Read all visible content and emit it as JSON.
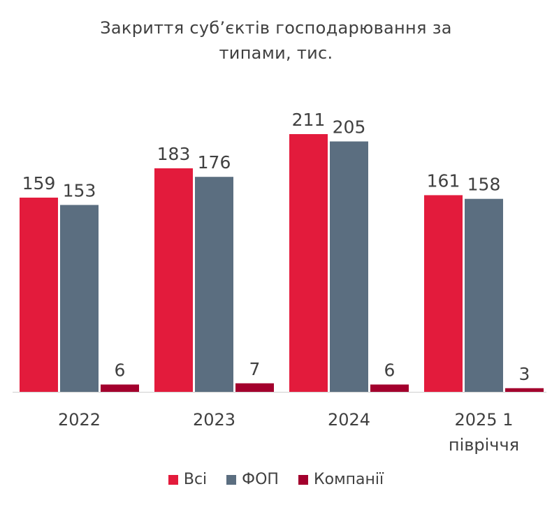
{
  "title_lines": [
    "Закриття суб’єктів господарювання за",
    "типами, тис."
  ],
  "chart_data": {
    "type": "bar",
    "title": "Закриття суб’єктів господарювання за типами, тис.",
    "categories": [
      [
        "2022"
      ],
      [
        "2023"
      ],
      [
        "2024"
      ],
      [
        "2025 1",
        "півріччя"
      ]
    ],
    "series": [
      {
        "name": "Всі",
        "color": "#E31B3C",
        "values": [
          159,
          183,
          211,
          161
        ]
      },
      {
        "name": "ФОП",
        "color": "#5B6E80",
        "values": [
          153,
          176,
          205,
          158
        ]
      },
      {
        "name": "Компанії",
        "color": "#A3002D",
        "values": [
          6,
          7,
          6,
          3
        ]
      }
    ],
    "ylim": [
      0,
      211
    ],
    "grid": false,
    "legend_position": "bottom"
  }
}
